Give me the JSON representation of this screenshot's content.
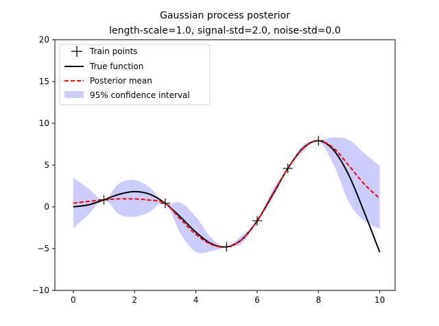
{
  "chart_data": {
    "type": "line",
    "title": "Gaussian process posterior",
    "subtitle": "length-scale=1.0, signal-std=2.0, noise-std=0.0",
    "xlabel": "",
    "ylabel": "",
    "xlim": [
      -0.6,
      10.5
    ],
    "ylim": [
      -10,
      20
    ],
    "xticks": [
      0,
      2,
      4,
      6,
      8,
      10
    ],
    "yticks": [
      -10,
      -5,
      0,
      5,
      10,
      15,
      20
    ],
    "grid": false,
    "legend_placement": "top-left",
    "train_points": {
      "name": "Train points",
      "color": "#000000",
      "x": [
        1,
        3,
        5,
        6,
        7,
        8
      ],
      "y": [
        0.84,
        0.42,
        -4.79,
        -1.68,
        4.6,
        7.91
      ]
    },
    "series": [
      {
        "name": "True function",
        "color": "#000000",
        "style": "solid",
        "x": [
          0,
          0.5,
          1,
          1.5,
          2,
          2.5,
          3,
          3.5,
          4,
          4.5,
          5,
          5.5,
          6,
          6.5,
          7,
          7.5,
          8,
          8.5,
          9,
          9.5,
          10
        ],
        "y": [
          0,
          0.24,
          0.84,
          1.5,
          1.82,
          1.5,
          0.42,
          -1.23,
          -3.03,
          -4.4,
          -4.79,
          -3.91,
          -1.68,
          1.4,
          4.6,
          7.04,
          7.91,
          6.77,
          3.71,
          -0.71,
          -5.44
        ]
      },
      {
        "name": "Posterior mean",
        "color": "#ff0000",
        "style": "dashed",
        "x": [
          0,
          0.5,
          1,
          1.5,
          2,
          2.5,
          3,
          3.5,
          4,
          4.5,
          5,
          5.5,
          6,
          6.5,
          7,
          7.5,
          8,
          8.5,
          9,
          9.5,
          10
        ],
        "y": [
          0.45,
          0.65,
          0.84,
          0.95,
          0.95,
          0.8,
          0.42,
          -1.5,
          -3.3,
          -4.5,
          -4.79,
          -3.9,
          -1.68,
          1.5,
          4.6,
          7.0,
          7.91,
          7.0,
          4.9,
          2.7,
          1.0
        ]
      }
    ],
    "confidence_band": {
      "name": "95% confidence interval",
      "color": "#ccccff",
      "x": [
        0,
        0.5,
        1,
        1.5,
        2,
        2.5,
        3,
        3.5,
        4,
        4.5,
        5,
        5.5,
        6,
        6.5,
        7,
        7.5,
        8,
        8.5,
        9,
        9.5,
        10
      ],
      "lower": [
        -2.6,
        -0.9,
        0.84,
        -0.9,
        -1.2,
        -0.6,
        0.42,
        -3.2,
        -5.4,
        -5.3,
        -4.79,
        -4.4,
        -1.68,
        1.0,
        4.6,
        6.6,
        7.91,
        5.0,
        0.5,
        -1.7,
        -2.6
      ],
      "upper": [
        3.5,
        2.2,
        0.84,
        2.8,
        3.2,
        2.3,
        0.42,
        0.5,
        -1.2,
        -3.7,
        -4.79,
        -3.4,
        -1.68,
        2.0,
        4.6,
        7.4,
        7.91,
        8.3,
        8.0,
        6.4,
        4.9
      ]
    },
    "legend": [
      "Train points",
      "True function",
      "Posterior mean",
      "95% confidence interval"
    ]
  }
}
